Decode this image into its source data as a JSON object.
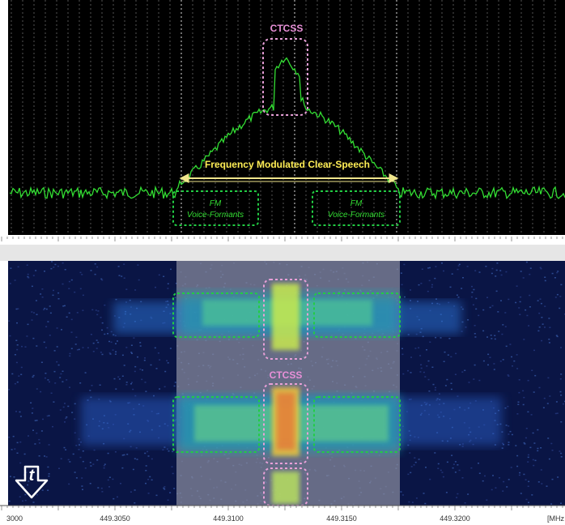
{
  "spectrum": {
    "ctcss_label": "CTCSS",
    "bandwidth_label": "Frequency Modulated Clear-Speech",
    "formant_left_line1": "FM",
    "formant_left_line2": "Voice-Formants",
    "formant_right_line1": "FM",
    "formant_right_line2": "Voice-Formants"
  },
  "waterfall": {
    "ctcss_label": "CTCSS",
    "time_icon": "time-direction-arrow-icon",
    "time_icon_letter": "t"
  },
  "axis": {
    "ticks": [
      "3000",
      "449.3050",
      "449.3100",
      "449.3150",
      "449.3200"
    ],
    "unit": "[MHz"
  },
  "colors": {
    "spectrum_bg": "#000000",
    "trace": "#33dd33",
    "ctcss_box": "#e8a0d8",
    "ctcss_text": "#e890d8",
    "formant_box": "#22cc44",
    "arrow": "#f0e68c",
    "bandwidth_text": "#ffee55",
    "waterfall_bg": "#0a1545"
  }
}
